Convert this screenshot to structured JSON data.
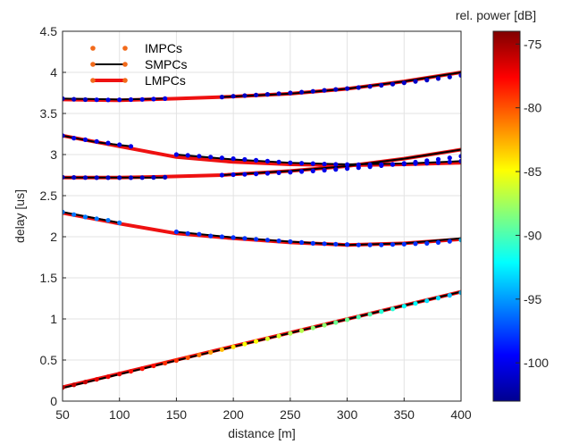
{
  "chart_data": {
    "type": "line",
    "xlabel": "distance [m]",
    "ylabel": "delay [us]",
    "xlim": [
      50,
      400
    ],
    "ylim": [
      0,
      4.5
    ],
    "xticks": [
      50,
      100,
      150,
      200,
      250,
      300,
      350,
      400
    ],
    "yticks": [
      0,
      0.5,
      1,
      1.5,
      2,
      2.5,
      3,
      3.5,
      4,
      4.5
    ],
    "grid": true,
    "legend_position": "top-left",
    "legend": [
      {
        "label": "IMPCs",
        "style": "dots",
        "color": "#f26a1b"
      },
      {
        "label": "SMPCs",
        "style": "line-with-dots",
        "color": "#000000",
        "marker_color": "#f26a1b"
      },
      {
        "label": "LMPCs",
        "style": "thick-line-with-dots",
        "color": "#ee1111",
        "marker_color": "#f26a1b"
      }
    ],
    "colorbar": {
      "label": "rel. power [dB]",
      "range": [
        -103,
        -74
      ],
      "ticks": [
        -75,
        -80,
        -85,
        -90,
        -95,
        -100
      ]
    },
    "lmpc_series": [
      {
        "name": "",
        "points": [
          [
            50,
            3.67
          ],
          [
            100,
            3.66
          ],
          [
            150,
            3.68
          ],
          [
            190,
            3.7
          ],
          [
            250,
            3.74
          ],
          [
            300,
            3.8
          ],
          [
            350,
            3.89
          ],
          [
            400,
            4.0
          ]
        ]
      },
      {
        "name": "",
        "points": [
          [
            50,
            3.23
          ],
          [
            100,
            3.1
          ],
          [
            150,
            2.97
          ],
          [
            200,
            2.91
          ],
          [
            250,
            2.88
          ],
          [
            300,
            2.87
          ],
          [
            350,
            2.88
          ],
          [
            400,
            2.9
          ]
        ]
      },
      {
        "name": "",
        "points": [
          [
            50,
            2.72
          ],
          [
            100,
            2.72
          ],
          [
            140,
            2.73
          ],
          [
            190,
            2.75
          ],
          [
            250,
            2.8
          ],
          [
            300,
            2.86
          ],
          [
            350,
            2.95
          ],
          [
            400,
            3.06
          ]
        ]
      },
      {
        "name": "",
        "points": [
          [
            50,
            2.29
          ],
          [
            100,
            2.16
          ],
          [
            150,
            2.04
          ],
          [
            200,
            1.98
          ],
          [
            250,
            1.93
          ],
          [
            300,
            1.9
          ],
          [
            350,
            1.92
          ],
          [
            400,
            1.97
          ]
        ]
      },
      {
        "name": "",
        "points": [
          [
            50,
            0.17
          ],
          [
            400,
            1.33
          ]
        ]
      }
    ],
    "smpc_segments": [
      {
        "points": [
          [
            50,
            3.68
          ],
          [
            100,
            3.67
          ],
          [
            140,
            3.68
          ]
        ]
      },
      {
        "points": [
          [
            190,
            3.7
          ],
          [
            250,
            3.74
          ],
          [
            300,
            3.8
          ],
          [
            350,
            3.89
          ],
          [
            400,
            4.0
          ]
        ]
      },
      {
        "points": [
          [
            50,
            3.23
          ],
          [
            80,
            3.15
          ],
          [
            110,
            3.1
          ]
        ]
      },
      {
        "points": [
          [
            150,
            3.0
          ],
          [
            200,
            2.94
          ],
          [
            250,
            2.9
          ],
          [
            300,
            2.88
          ],
          [
            350,
            2.89
          ],
          [
            400,
            2.92
          ]
        ]
      },
      {
        "points": [
          [
            50,
            2.72
          ],
          [
            100,
            2.72
          ],
          [
            140,
            2.72
          ]
        ]
      },
      {
        "points": [
          [
            190,
            2.75
          ],
          [
            250,
            2.8
          ],
          [
            300,
            2.86
          ],
          [
            350,
            2.95
          ],
          [
            400,
            3.06
          ]
        ]
      },
      {
        "points": [
          [
            50,
            2.3
          ],
          [
            100,
            2.17
          ]
        ]
      },
      {
        "points": [
          [
            150,
            2.06
          ],
          [
            200,
            1.99
          ],
          [
            250,
            1.94
          ],
          [
            300,
            1.9
          ],
          [
            350,
            1.92
          ],
          [
            400,
            1.98
          ]
        ]
      },
      {
        "points": [
          [
            50,
            0.16
          ],
          [
            400,
            1.33
          ]
        ]
      }
    ],
    "impc_points": [
      {
        "x0": 50,
        "x1": 140,
        "step": 10,
        "y": [
          3.68,
          3.673,
          3.668,
          3.666,
          3.665,
          3.666,
          3.668,
          3.671,
          3.675,
          3.68
        ],
        "db": [
          -101,
          -101,
          -101,
          -100,
          -100,
          -100,
          -100,
          -100,
          -100,
          -100
        ]
      },
      {
        "x0": 190,
        "x1": 400,
        "step": 10,
        "y": [
          3.7,
          3.71,
          3.717,
          3.725,
          3.733,
          3.741,
          3.75,
          3.76,
          3.77,
          3.781,
          3.792,
          3.803,
          3.815,
          3.828,
          3.842,
          3.857,
          3.873,
          3.89,
          3.907,
          3.925,
          3.944,
          3.963
        ],
        "db": [
          -101,
          -101,
          -101,
          -101,
          -101,
          -101,
          -101,
          -101,
          -101,
          -101,
          -101,
          -101,
          -101,
          -101,
          -101,
          -101,
          -101,
          -101,
          -101,
          -101,
          -101,
          -100
        ]
      },
      {
        "x0": 50,
        "x1": 110,
        "step": 10,
        "y": [
          3.23,
          3.2,
          3.18,
          3.16,
          3.14,
          3.12,
          3.1
        ],
        "db": [
          -100,
          -100,
          -100,
          -100,
          -100,
          -100,
          -100
        ]
      },
      {
        "x0": 150,
        "x1": 400,
        "step": 10,
        "y": [
          3.0,
          2.99,
          2.98,
          2.97,
          2.96,
          2.95,
          2.94,
          2.93,
          2.92,
          2.91,
          2.9,
          2.895,
          2.89,
          2.885,
          2.88,
          2.878,
          2.876,
          2.877,
          2.878,
          2.88,
          2.884,
          2.889,
          2.895,
          2.902,
          2.91,
          2.92
        ],
        "db": [
          -100,
          -100,
          -100,
          -100,
          -100,
          -100,
          -100,
          -100,
          -100,
          -100,
          -100,
          -100,
          -100,
          -100,
          -100,
          -100,
          -100,
          -100,
          -100,
          -100,
          -100,
          -100,
          -100,
          -100,
          -100,
          -100
        ]
      },
      {
        "x0": 50,
        "x1": 140,
        "step": 10,
        "y": [
          2.725,
          2.722,
          2.72,
          2.719,
          2.718,
          2.718,
          2.719,
          2.72,
          2.722,
          2.724
        ],
        "db": [
          -101,
          -101,
          -101,
          -101,
          -101,
          -101,
          -101,
          -101,
          -101,
          -101
        ]
      },
      {
        "x0": 190,
        "x1": 400,
        "step": 10,
        "y": [
          2.75,
          2.755,
          2.76,
          2.765,
          2.772,
          2.778,
          2.785,
          2.793,
          2.8,
          2.81,
          2.82,
          2.83,
          2.84,
          2.852,
          2.865,
          2.878,
          2.893,
          2.908,
          2.925,
          2.942,
          2.96,
          2.98
        ],
        "db": [
          -100,
          -100,
          -100,
          -100,
          -100,
          -100,
          -100,
          -100,
          -100,
          -100,
          -100,
          -100,
          -100,
          -100,
          -100,
          -100,
          -100,
          -100,
          -100,
          -100,
          -100,
          -100
        ]
      },
      {
        "x0": 50,
        "x1": 100,
        "step": 10,
        "y": [
          2.3,
          2.27,
          2.24,
          2.22,
          2.2,
          2.17
        ],
        "db": [
          -96,
          -96,
          -96,
          -96,
          -96,
          -96
        ]
      },
      {
        "x0": 150,
        "x1": 400,
        "step": 10,
        "y": [
          2.06,
          2.04,
          2.03,
          2.01,
          2.0,
          1.99,
          1.98,
          1.97,
          1.96,
          1.95,
          1.94,
          1.93,
          1.92,
          1.915,
          1.91,
          1.905,
          1.9,
          1.9,
          1.9,
          1.905,
          1.91,
          1.915,
          1.92,
          1.93,
          1.945,
          1.96
        ],
        "db": [
          -98,
          -98,
          -98,
          -98,
          -98,
          -98,
          -98,
          -98,
          -98,
          -98,
          -98,
          -98,
          -98,
          -98,
          -98,
          -98,
          -98,
          -98,
          -98,
          -98,
          -98,
          -98,
          -98,
          -98,
          -98,
          -94
        ]
      },
      {
        "x0": 50,
        "x1": 400,
        "step": 10,
        "y": [
          0.165,
          0.198,
          0.231,
          0.264,
          0.297,
          0.33,
          0.363,
          0.396,
          0.429,
          0.462,
          0.495,
          0.528,
          0.561,
          0.594,
          0.627,
          0.66,
          0.693,
          0.726,
          0.759,
          0.792,
          0.825,
          0.858,
          0.891,
          0.924,
          0.957,
          0.99,
          1.023,
          1.056,
          1.089,
          1.122,
          1.155,
          1.188,
          1.221,
          1.254,
          1.287,
          1.32
        ],
        "db": [
          -76,
          -76,
          -76,
          -77,
          -77,
          -77,
          -78,
          -78,
          -78,
          -79,
          -79,
          -80,
          -81,
          -82,
          -83,
          -84,
          -85,
          -85,
          -86,
          -86,
          -87,
          -87,
          -88,
          -88,
          -89,
          -89,
          -90,
          -90,
          -91,
          -91,
          -92,
          -92,
          -93,
          -93,
          -94,
          -94
        ]
      }
    ]
  }
}
